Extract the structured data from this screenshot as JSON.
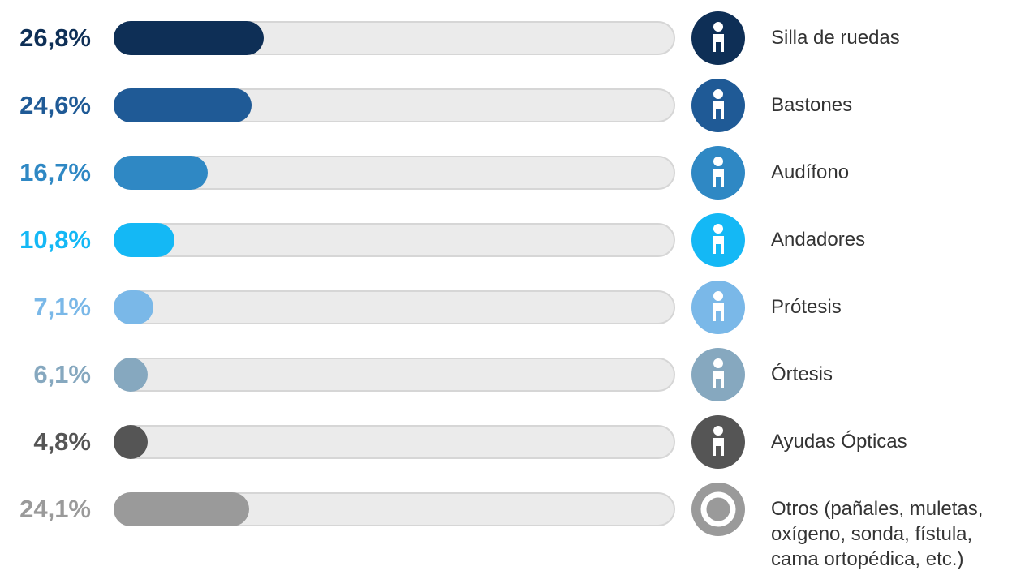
{
  "chart_data": {
    "type": "bar",
    "categories": [
      "Silla de ruedas",
      "Bastones",
      "Audífono",
      "Andadores",
      "Prótesis",
      "Órtesis",
      "Ayudas Ópticas",
      "Otros (pañales, muletas, oxígeno, sonda, fístula, cama ortopédica, etc.)"
    ],
    "values": [
      26.8,
      24.6,
      16.7,
      10.8,
      7.1,
      6.1,
      4.8,
      24.1
    ],
    "value_labels": [
      "26,8%",
      "24,6%",
      "16,7%",
      "10,8%",
      "7,1%",
      "6,1%",
      "4,8%",
      "24,1%"
    ],
    "colors": [
      "#0e2f56",
      "#1f5a96",
      "#2f88c4",
      "#14b8f5",
      "#7ab8e8",
      "#86a8bf",
      "#555555",
      "#9a9a9a"
    ],
    "xlim": [
      0,
      100
    ]
  }
}
